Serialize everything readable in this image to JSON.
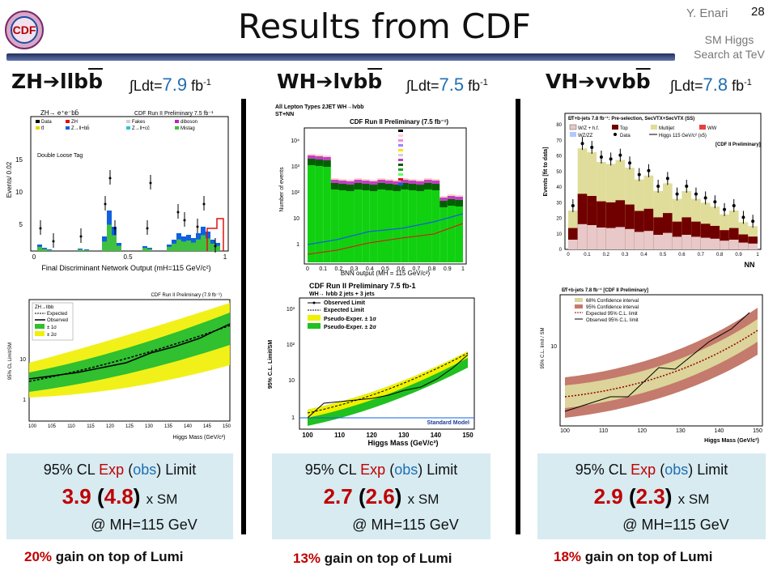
{
  "header": {
    "title": "Results from CDF",
    "author": "Y. Enari",
    "page": "28",
    "topic_line1": "SM Higgs",
    "topic_line2": "Search at TeV",
    "logo": "CDF"
  },
  "columns": [
    {
      "channel_head": "ZH",
      "channel_tail": "llb",
      "channel_bb": "b",
      "lumi_prefix": "∫Ldt=",
      "lumi_value": "7.9",
      "lumi_unit": " fb",
      "lumi_exp": "-1",
      "plot1": {
        "title": "ZH→ e⁺e⁻bb̄",
        "header": "CDF Run II Preliminary  7.5 fb⁻¹",
        "tag": "Double Loose Tag",
        "ylabel": "Events/ 0.02",
        "xlabel": "Final Discriminant Network Output (mH=115 GeV/c²)",
        "legend": [
          "Data",
          "ZH",
          "Fakes",
          "diboson",
          "tt̄",
          "Z→ll+bb̄",
          "Z→ll+cc̄",
          "Mistag"
        ],
        "yticks": [
          "15",
          "10",
          "5"
        ],
        "xticks": [
          "0",
          "0.5",
          "1"
        ]
      },
      "plot2": {
        "header": "CDF Run II Preliminary (7.9 fb⁻¹)",
        "ylabel": "95% CL Limit/SM",
        "xlabel": "Higgs Mass (GeV/c²)",
        "legend": [
          "ZH→llbb",
          "Expected",
          "Observed",
          "± 1σ",
          "± 2σ"
        ],
        "xticks": [
          "100",
          "105",
          "110",
          "115",
          "120",
          "125",
          "130",
          "135",
          "140",
          "145",
          "150"
        ],
        "yticks": [
          "10",
          "1"
        ]
      },
      "cl": "95% CL",
      "exp": "Exp",
      "obs": "obs",
      "limit": "Limit",
      "exp_val": "3.9",
      "obs_val": "4.8",
      "xsm": "x SM",
      "mh": "@ MH=115 GeV",
      "gain_pct": "20%",
      "gain_text": " gain on top of Lumi"
    },
    {
      "channel_head": "WH",
      "channel_tail": "lvb",
      "channel_bb": "b",
      "lumi_prefix": "∫Ldt=",
      "lumi_value": "7.5",
      "lumi_unit": " fb",
      "lumi_exp": "-1",
      "plot1": {
        "title": "All Lepton Types  2JET  WH→lvbb",
        "subtitle": "ST+NN",
        "header": "CDF Run II Preliminary (7.5 fb⁻¹)",
        "ylabel": "Number of events",
        "xlabel": "BNN output (MH = 115 GeV/c²)",
        "xticks": [
          "0",
          "0.1",
          "0.2",
          "0.3",
          "0.4",
          "0.5",
          "0.6",
          "0.7",
          "0.8",
          "0.9",
          "1"
        ],
        "yticks": [
          "10⁴",
          "10³",
          "10²",
          "10",
          "1"
        ]
      },
      "plot2": {
        "header": "CDF Run II Preliminary 7.5 fb-1",
        "sub": "WH→ lνbb 2 jets + 3 jets",
        "ylabel": "95% C.L. Limit/SM",
        "xlabel": "Higgs Mass (GeV/c²)",
        "legend": [
          "Observed Limit",
          "Expected Limit",
          "Pseudo-Exper. ± 1σ",
          "Pseudo-Exper. ± 2σ"
        ],
        "model": "Standard Model",
        "xticks": [
          "100",
          "110",
          "120",
          "130",
          "140",
          "150"
        ],
        "yticks": [
          "10³",
          "10²",
          "10",
          "1"
        ]
      },
      "cl": "95% CL",
      "exp": "Exp",
      "obs": "obs",
      "limit": "Limit",
      "exp_val": "2.7",
      "obs_val": "2.6",
      "xsm": "x SM",
      "mh": "@ MH=115 GeV",
      "gain_pct": "13%",
      "gain_text": " gain on top of Lumi"
    },
    {
      "channel_head": "VH",
      "channel_tail": "vvb",
      "channel_bb": "b",
      "lumi_prefix": "∫Ldt=",
      "lumi_value": "7.8",
      "lumi_unit": " fb",
      "lumi_exp": "-1",
      "plot1": {
        "header": "E̸T+b-jets 7.8 fb⁻¹: Pre-selection, SecVTX+SecVTX (SS)",
        "tag": "[CDF II Preliminary]",
        "ylabel": "Events [fit to data]",
        "xlabel": "NN",
        "legend": [
          "W/Z + h.f.",
          "Top",
          "Multijet",
          "WW",
          "WZ/ZZ",
          "Data",
          "Higgs 115 GeV/c² (x5)"
        ],
        "xticks": [
          "0",
          "0.1",
          "0.2",
          "0.3",
          "0.4",
          "0.5",
          "0.6",
          "0.7",
          "0.8",
          "0.9",
          "1"
        ],
        "yticks": [
          "80",
          "70",
          "60",
          "50",
          "40",
          "30",
          "20",
          "10",
          "0"
        ]
      },
      "plot2": {
        "header": "E̸T+b-jets 7.8 fb⁻¹ [CDF II Preliminary]",
        "ylabel": "95% C.L. limit / SM",
        "xlabel": "Higgs Mass (GeV/c²)",
        "legend": [
          "68% Confidence interval",
          "95% Confidence interval",
          "Expected 95% C.L. limit",
          "Observed 95% C.L. limit"
        ],
        "xticks": [
          "100",
          "110",
          "120",
          "130",
          "140",
          "150"
        ],
        "yticks": [
          "10"
        ]
      },
      "cl": "95% CL",
      "exp": "Exp",
      "obs": "obs",
      "limit": "Limit",
      "exp_val": "2.9",
      "obs_val": "2.3",
      "xsm": "x SM",
      "mh": "@ MH=115 GeV",
      "gain_pct": "18%",
      "gain_text": " gain on top of Lumi"
    }
  ]
}
